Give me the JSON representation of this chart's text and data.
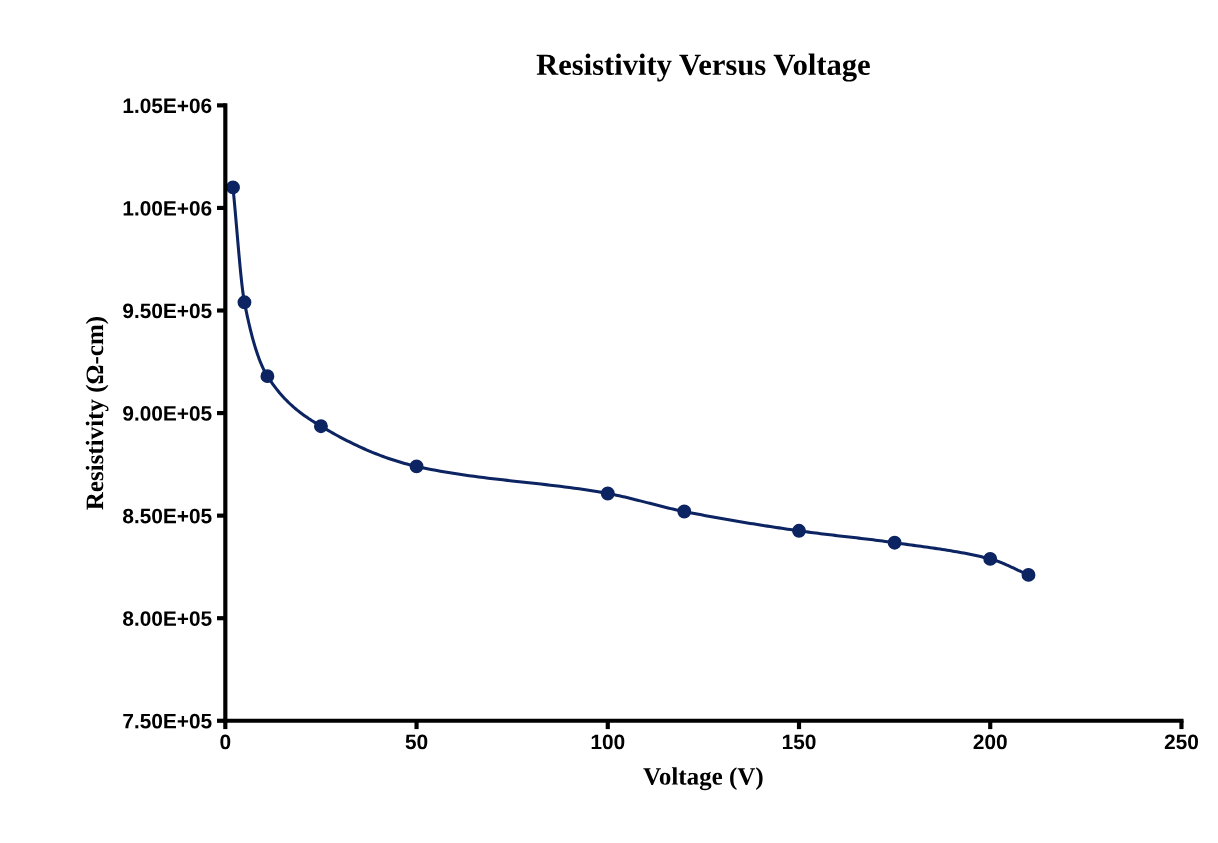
{
  "chart_data": {
    "type": "line",
    "title": "Resistivity Versus Voltage",
    "xlabel": "Voltage (V)",
    "ylabel": "Resistivity (Ω-cm)",
    "x": [
      2,
      5,
      11,
      25,
      50,
      100,
      120,
      150,
      175,
      200,
      210
    ],
    "series": [
      {
        "color": "#0c2461",
        "values": [
          1010000,
          954000,
          918000,
          893600,
          874000,
          860800,
          852000,
          842600,
          836800,
          828900,
          821100
        ]
      }
    ],
    "xlim": [
      0,
      250
    ],
    "xticks": [
      0,
      50,
      100,
      150,
      200,
      250
    ],
    "ylim": [
      750000,
      1050000
    ],
    "yticks": [
      {
        "value": 750000,
        "label": "7.50E+05"
      },
      {
        "value": 800000,
        "label": "8.00E+05"
      },
      {
        "value": 850000,
        "label": "8.50E+05"
      },
      {
        "value": 900000,
        "label": "9.00E+05"
      },
      {
        "value": 950000,
        "label": "9.50E+05"
      },
      {
        "value": 1000000,
        "label": "1.00E+06"
      },
      {
        "value": 1050000,
        "label": "1.05E+06"
      }
    ],
    "marker": "circle",
    "line_style": "solid",
    "grid": false,
    "legend": false
  }
}
